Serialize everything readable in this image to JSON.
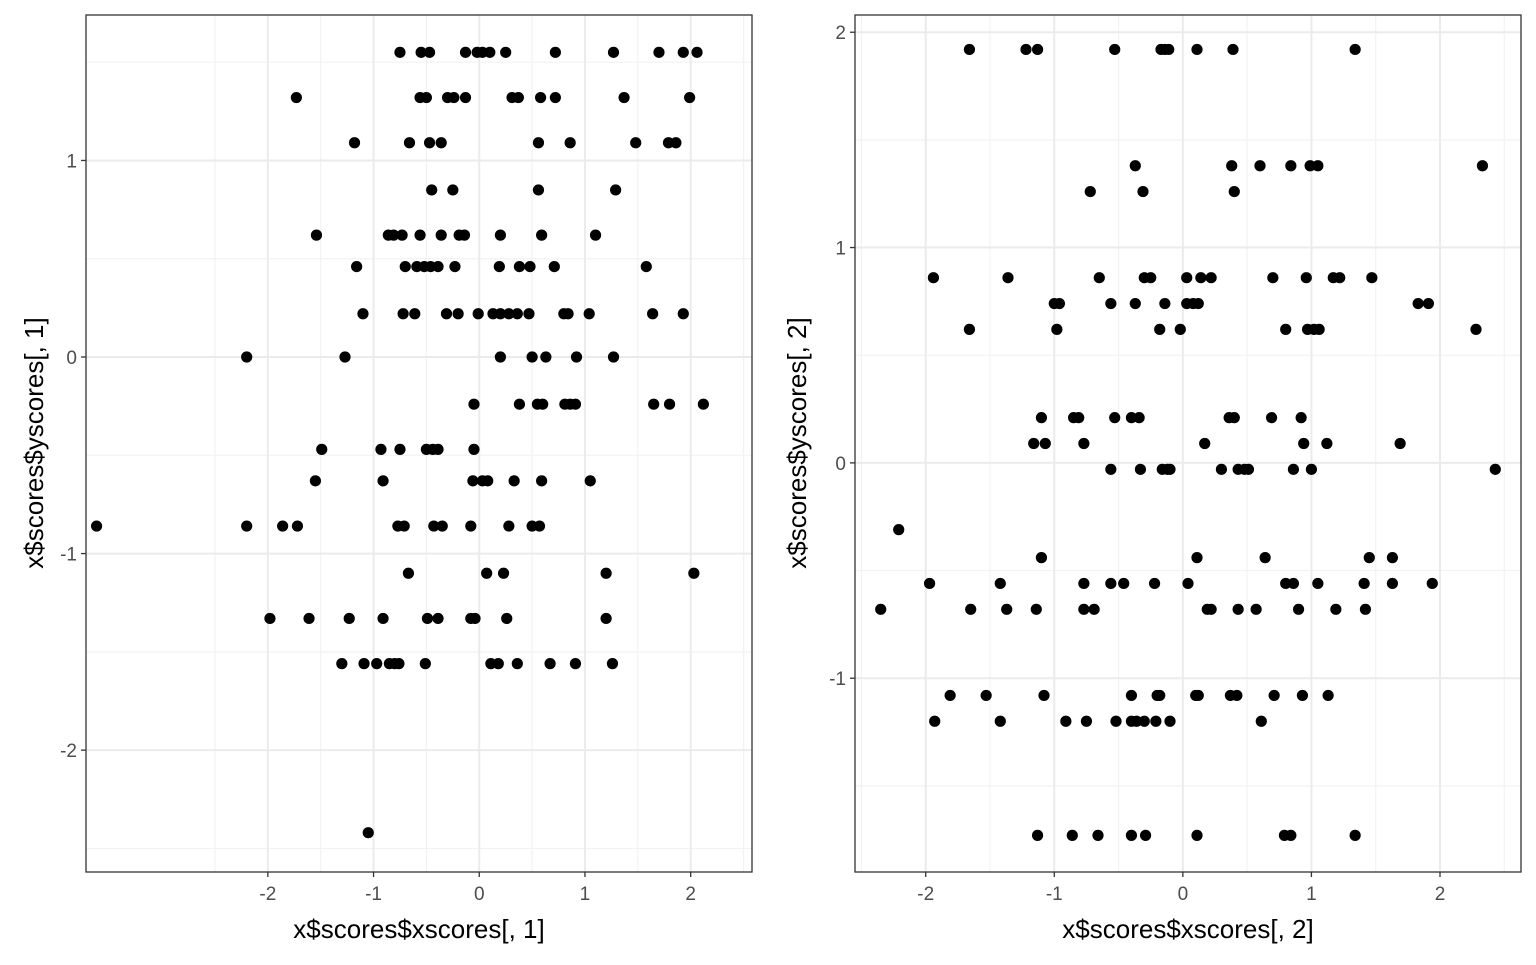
{
  "chart_data": [
    {
      "type": "scatter",
      "xlabel": "x$scores$xscores[, 1]",
      "ylabel": "x$scores$yscores[, 1]",
      "xlim": [
        -3.72,
        2.58
      ],
      "ylim": [
        -2.62,
        1.74
      ],
      "xticks": [
        -2,
        -1,
        0,
        1,
        2
      ],
      "yticks": [
        -2,
        -1,
        0,
        1
      ],
      "grid": true,
      "marker_color": "#000000",
      "points": [
        [
          -0.75,
          1.55
        ],
        [
          -0.55,
          1.55
        ],
        [
          -0.47,
          1.55
        ],
        [
          -0.13,
          1.55
        ],
        [
          -0.02,
          1.55
        ],
        [
          0.03,
          1.55
        ],
        [
          0.1,
          1.55
        ],
        [
          0.25,
          1.55
        ],
        [
          0.72,
          1.55
        ],
        [
          1.27,
          1.55
        ],
        [
          1.7,
          1.55
        ],
        [
          1.93,
          1.55
        ],
        [
          2.06,
          1.55
        ],
        [
          -1.73,
          1.32
        ],
        [
          -0.56,
          1.32
        ],
        [
          -0.5,
          1.32
        ],
        [
          -0.3,
          1.32
        ],
        [
          -0.24,
          1.32
        ],
        [
          -0.13,
          1.32
        ],
        [
          0.31,
          1.32
        ],
        [
          0.37,
          1.32
        ],
        [
          0.58,
          1.32
        ],
        [
          0.72,
          1.32
        ],
        [
          1.37,
          1.32
        ],
        [
          1.99,
          1.32
        ],
        [
          -1.18,
          1.09
        ],
        [
          -0.66,
          1.09
        ],
        [
          -0.47,
          1.09
        ],
        [
          -0.36,
          1.09
        ],
        [
          0.56,
          1.09
        ],
        [
          0.86,
          1.09
        ],
        [
          1.48,
          1.09
        ],
        [
          1.79,
          1.09
        ],
        [
          1.86,
          1.09
        ],
        [
          -0.45,
          0.85
        ],
        [
          -0.25,
          0.85
        ],
        [
          0.56,
          0.85
        ],
        [
          1.29,
          0.85
        ],
        [
          -1.54,
          0.62
        ],
        [
          -0.86,
          0.62
        ],
        [
          -0.81,
          0.62
        ],
        [
          -0.73,
          0.62
        ],
        [
          -0.56,
          0.62
        ],
        [
          -0.36,
          0.62
        ],
        [
          -0.19,
          0.62
        ],
        [
          -0.14,
          0.62
        ],
        [
          0.2,
          0.62
        ],
        [
          0.59,
          0.62
        ],
        [
          1.1,
          0.62
        ],
        [
          -1.16,
          0.46
        ],
        [
          -0.7,
          0.46
        ],
        [
          -0.59,
          0.46
        ],
        [
          -0.52,
          0.46
        ],
        [
          -0.46,
          0.46
        ],
        [
          -0.39,
          0.46
        ],
        [
          -0.23,
          0.46
        ],
        [
          0.19,
          0.46
        ],
        [
          0.38,
          0.46
        ],
        [
          0.48,
          0.46
        ],
        [
          0.71,
          0.46
        ],
        [
          1.58,
          0.46
        ],
        [
          -1.1,
          0.22
        ],
        [
          -0.72,
          0.22
        ],
        [
          -0.61,
          0.22
        ],
        [
          -0.31,
          0.22
        ],
        [
          -0.2,
          0.22
        ],
        [
          -0.01,
          0.22
        ],
        [
          0.13,
          0.22
        ],
        [
          0.2,
          0.22
        ],
        [
          0.28,
          0.22
        ],
        [
          0.36,
          0.22
        ],
        [
          0.47,
          0.22
        ],
        [
          0.8,
          0.22
        ],
        [
          0.84,
          0.22
        ],
        [
          1.04,
          0.22
        ],
        [
          1.64,
          0.22
        ],
        [
          1.93,
          0.22
        ],
        [
          -2.2,
          0.0
        ],
        [
          -1.27,
          0.0
        ],
        [
          0.2,
          0.0
        ],
        [
          0.5,
          0.0
        ],
        [
          0.63,
          0.0
        ],
        [
          0.92,
          0.0
        ],
        [
          1.27,
          0.0
        ],
        [
          -0.05,
          -0.24
        ],
        [
          0.38,
          -0.24
        ],
        [
          0.55,
          -0.24
        ],
        [
          0.6,
          -0.24
        ],
        [
          0.81,
          -0.24
        ],
        [
          0.86,
          -0.24
        ],
        [
          0.91,
          -0.24
        ],
        [
          1.65,
          -0.24
        ],
        [
          1.8,
          -0.24
        ],
        [
          2.12,
          -0.24
        ],
        [
          -1.49,
          -0.47
        ],
        [
          -0.93,
          -0.47
        ],
        [
          -0.75,
          -0.47
        ],
        [
          -0.5,
          -0.47
        ],
        [
          -0.44,
          -0.47
        ],
        [
          -0.39,
          -0.47
        ],
        [
          -0.05,
          -0.47
        ],
        [
          -1.55,
          -0.63
        ],
        [
          -0.91,
          -0.63
        ],
        [
          -0.06,
          -0.63
        ],
        [
          0.03,
          -0.63
        ],
        [
          0.08,
          -0.63
        ],
        [
          0.33,
          -0.63
        ],
        [
          0.59,
          -0.63
        ],
        [
          1.05,
          -0.63
        ],
        [
          -3.62,
          -0.86
        ],
        [
          -2.2,
          -0.86
        ],
        [
          -1.86,
          -0.86
        ],
        [
          -1.72,
          -0.86
        ],
        [
          -0.77,
          -0.86
        ],
        [
          -0.71,
          -0.86
        ],
        [
          -0.43,
          -0.86
        ],
        [
          -0.35,
          -0.86
        ],
        [
          -0.08,
          -0.86
        ],
        [
          0.28,
          -0.86
        ],
        [
          0.5,
          -0.86
        ],
        [
          0.57,
          -0.86
        ],
        [
          -0.67,
          -1.1
        ],
        [
          0.07,
          -1.1
        ],
        [
          0.23,
          -1.1
        ],
        [
          1.2,
          -1.1
        ],
        [
          2.03,
          -1.1
        ],
        [
          -1.98,
          -1.33
        ],
        [
          -1.61,
          -1.33
        ],
        [
          -1.23,
          -1.33
        ],
        [
          -0.91,
          -1.33
        ],
        [
          -0.49,
          -1.33
        ],
        [
          -0.39,
          -1.33
        ],
        [
          -0.08,
          -1.33
        ],
        [
          -0.04,
          -1.33
        ],
        [
          0.26,
          -1.33
        ],
        [
          1.2,
          -1.33
        ],
        [
          -1.3,
          -1.56
        ],
        [
          -1.09,
          -1.56
        ],
        [
          -0.97,
          -1.56
        ],
        [
          -0.85,
          -1.56
        ],
        [
          -0.8,
          -1.56
        ],
        [
          -0.76,
          -1.56
        ],
        [
          -0.51,
          -1.56
        ],
        [
          0.11,
          -1.56
        ],
        [
          0.18,
          -1.56
        ],
        [
          0.36,
          -1.56
        ],
        [
          0.67,
          -1.56
        ],
        [
          0.91,
          -1.56
        ],
        [
          1.26,
          -1.56
        ],
        [
          -1.05,
          -2.42
        ]
      ]
    },
    {
      "type": "scatter",
      "xlabel": "x$scores$xscores[, 2]",
      "ylabel": "x$scores$yscores[, 2]",
      "xlim": [
        -2.55,
        2.63
      ],
      "ylim": [
        -1.9,
        2.08
      ],
      "xticks": [
        -2,
        -1,
        0,
        1,
        2
      ],
      "yticks": [
        -1,
        0,
        1,
        2
      ],
      "grid": true,
      "marker_color": "#000000",
      "points": [
        [
          -1.66,
          1.92
        ],
        [
          -1.22,
          1.92
        ],
        [
          -1.13,
          1.92
        ],
        [
          -0.53,
          1.92
        ],
        [
          -0.17,
          1.92
        ],
        [
          -0.14,
          1.92
        ],
        [
          -0.11,
          1.92
        ],
        [
          0.11,
          1.92
        ],
        [
          0.39,
          1.92
        ],
        [
          1.34,
          1.92
        ],
        [
          -0.37,
          1.38
        ],
        [
          0.38,
          1.38
        ],
        [
          0.6,
          1.38
        ],
        [
          0.84,
          1.38
        ],
        [
          0.99,
          1.38
        ],
        [
          1.05,
          1.38
        ],
        [
          2.33,
          1.38
        ],
        [
          -0.72,
          1.26
        ],
        [
          -0.31,
          1.26
        ],
        [
          0.4,
          1.26
        ],
        [
          -1.94,
          0.86
        ],
        [
          -1.36,
          0.86
        ],
        [
          -0.65,
          0.86
        ],
        [
          -0.3,
          0.86
        ],
        [
          -0.25,
          0.86
        ],
        [
          0.03,
          0.86
        ],
        [
          0.14,
          0.86
        ],
        [
          0.22,
          0.86
        ],
        [
          0.7,
          0.86
        ],
        [
          0.96,
          0.86
        ],
        [
          1.17,
          0.86
        ],
        [
          1.22,
          0.86
        ],
        [
          1.47,
          0.86
        ],
        [
          -1.0,
          0.74
        ],
        [
          -0.96,
          0.74
        ],
        [
          -0.56,
          0.74
        ],
        [
          -0.37,
          0.74
        ],
        [
          -0.14,
          0.74
        ],
        [
          0.03,
          0.74
        ],
        [
          0.08,
          0.74
        ],
        [
          0.12,
          0.74
        ],
        [
          1.83,
          0.74
        ],
        [
          1.91,
          0.74
        ],
        [
          -1.66,
          0.62
        ],
        [
          -0.98,
          0.62
        ],
        [
          -0.18,
          0.62
        ],
        [
          -0.02,
          0.62
        ],
        [
          0.8,
          0.62
        ],
        [
          0.97,
          0.62
        ],
        [
          1.02,
          0.62
        ],
        [
          1.06,
          0.62
        ],
        [
          2.28,
          0.62
        ],
        [
          -1.1,
          0.21
        ],
        [
          -0.85,
          0.21
        ],
        [
          -0.81,
          0.21
        ],
        [
          -0.53,
          0.21
        ],
        [
          -0.4,
          0.21
        ],
        [
          -0.34,
          0.21
        ],
        [
          0.36,
          0.21
        ],
        [
          0.4,
          0.21
        ],
        [
          0.69,
          0.21
        ],
        [
          0.92,
          0.21
        ],
        [
          -1.16,
          0.09
        ],
        [
          -1.07,
          0.09
        ],
        [
          -0.77,
          0.09
        ],
        [
          0.17,
          0.09
        ],
        [
          0.94,
          0.09
        ],
        [
          1.12,
          0.09
        ],
        [
          1.69,
          0.09
        ],
        [
          -0.56,
          -0.03
        ],
        [
          -0.33,
          -0.03
        ],
        [
          -0.16,
          -0.03
        ],
        [
          -0.12,
          -0.03
        ],
        [
          -0.1,
          -0.03
        ],
        [
          0.3,
          -0.03
        ],
        [
          0.43,
          -0.03
        ],
        [
          0.48,
          -0.03
        ],
        [
          0.51,
          -0.03
        ],
        [
          0.86,
          -0.03
        ],
        [
          1.0,
          -0.03
        ],
        [
          2.43,
          -0.03
        ],
        [
          -2.21,
          -0.31
        ],
        [
          -1.1,
          -0.44
        ],
        [
          0.11,
          -0.44
        ],
        [
          0.64,
          -0.44
        ],
        [
          1.45,
          -0.44
        ],
        [
          1.63,
          -0.44
        ],
        [
          -1.97,
          -0.56
        ],
        [
          -1.42,
          -0.56
        ],
        [
          -0.77,
          -0.56
        ],
        [
          -0.56,
          -0.56
        ],
        [
          -0.46,
          -0.56
        ],
        [
          -0.22,
          -0.56
        ],
        [
          0.04,
          -0.56
        ],
        [
          0.8,
          -0.56
        ],
        [
          0.86,
          -0.56
        ],
        [
          1.05,
          -0.56
        ],
        [
          1.41,
          -0.56
        ],
        [
          1.63,
          -0.56
        ],
        [
          1.94,
          -0.56
        ],
        [
          -2.35,
          -0.68
        ],
        [
          -1.65,
          -0.68
        ],
        [
          -1.37,
          -0.68
        ],
        [
          -1.14,
          -0.68
        ],
        [
          -0.77,
          -0.68
        ],
        [
          -0.69,
          -0.68
        ],
        [
          0.19,
          -0.68
        ],
        [
          0.22,
          -0.68
        ],
        [
          0.43,
          -0.68
        ],
        [
          0.57,
          -0.68
        ],
        [
          0.9,
          -0.68
        ],
        [
          1.19,
          -0.68
        ],
        [
          1.42,
          -0.68
        ],
        [
          -1.81,
          -1.08
        ],
        [
          -1.53,
          -1.08
        ],
        [
          -1.08,
          -1.08
        ],
        [
          -0.4,
          -1.08
        ],
        [
          -0.2,
          -1.08
        ],
        [
          -0.18,
          -1.08
        ],
        [
          0.1,
          -1.08
        ],
        [
          0.12,
          -1.08
        ],
        [
          0.37,
          -1.08
        ],
        [
          0.42,
          -1.08
        ],
        [
          0.71,
          -1.08
        ],
        [
          0.93,
          -1.08
        ],
        [
          1.13,
          -1.08
        ],
        [
          -1.93,
          -1.2
        ],
        [
          -1.42,
          -1.2
        ],
        [
          -0.91,
          -1.2
        ],
        [
          -0.75,
          -1.2
        ],
        [
          -0.52,
          -1.2
        ],
        [
          -0.4,
          -1.2
        ],
        [
          -0.36,
          -1.2
        ],
        [
          -0.3,
          -1.2
        ],
        [
          -0.21,
          -1.2
        ],
        [
          -0.1,
          -1.2
        ],
        [
          0.61,
          -1.2
        ],
        [
          -1.13,
          -1.73
        ],
        [
          -0.86,
          -1.73
        ],
        [
          -0.66,
          -1.73
        ],
        [
          -0.4,
          -1.73
        ],
        [
          -0.29,
          -1.73
        ],
        [
          0.11,
          -1.73
        ],
        [
          0.79,
          -1.73
        ],
        [
          0.84,
          -1.73
        ],
        [
          1.34,
          -1.73
        ]
      ]
    }
  ]
}
